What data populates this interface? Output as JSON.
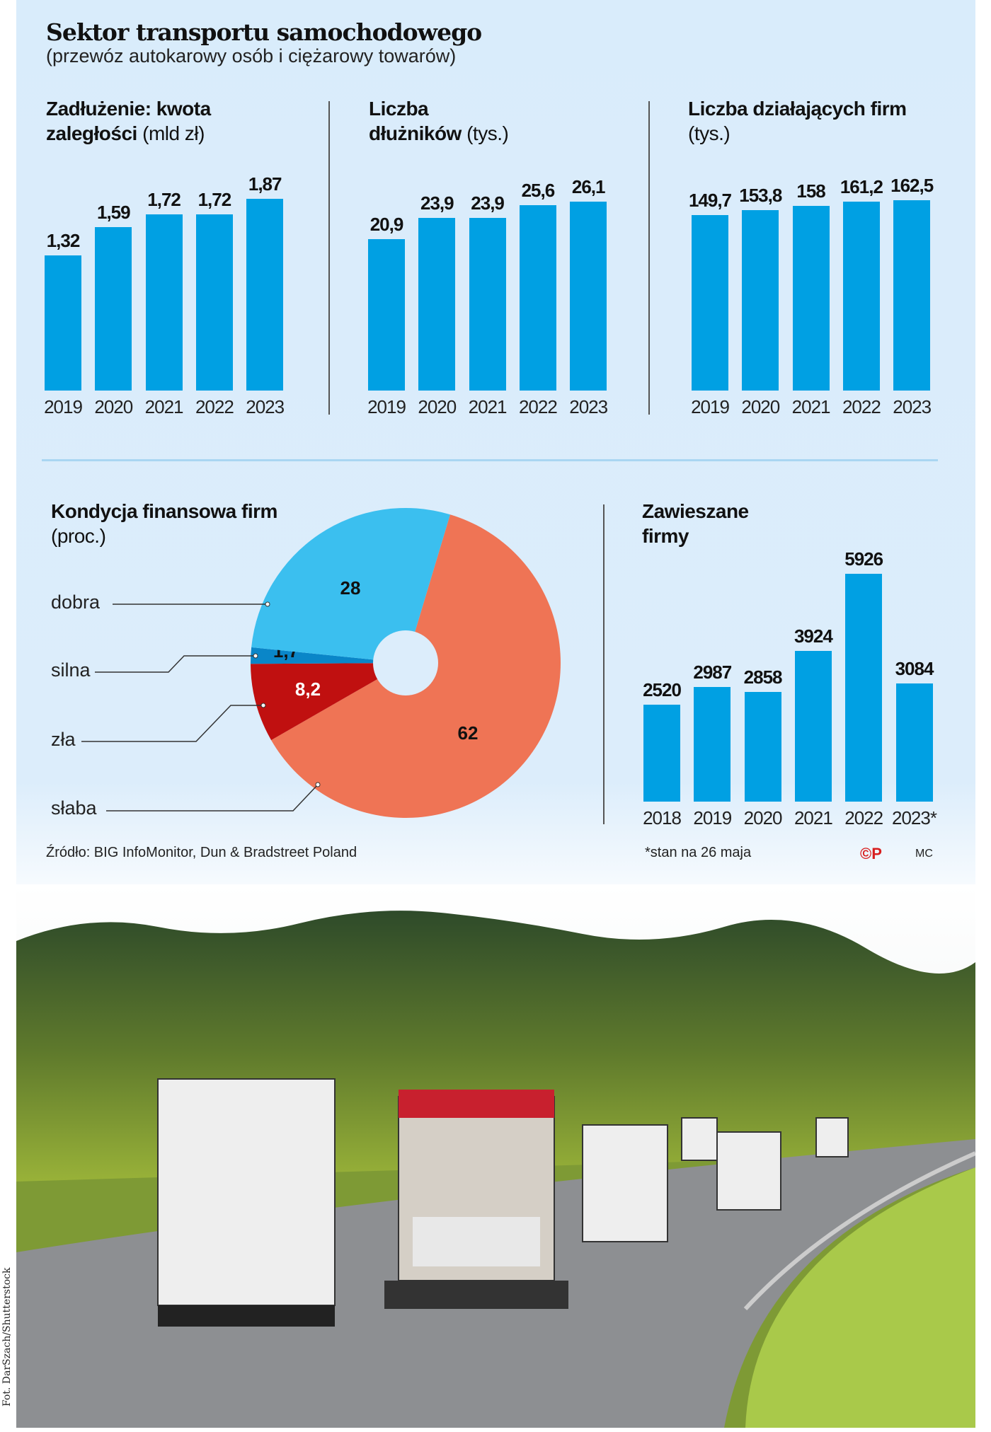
{
  "title": "Sektor transportu samochodowego",
  "subtitle": "(przewóz autokarowy osób i ciężarowy towarów)",
  "colors": {
    "bar": "#00a0e3",
    "background": "#dcedfb",
    "dobra": "#3bbfef",
    "silna": "#0a86c8",
    "zla": "#c01010",
    "slaba": "#ef7455"
  },
  "chart_data": [
    {
      "type": "bar",
      "title_bold": "Zadłużenie: kwota zaległości",
      "title_unit": "(mld zł)",
      "categories": [
        "2019",
        "2020",
        "2021",
        "2022",
        "2023"
      ],
      "values": [
        1.32,
        1.59,
        1.72,
        1.72,
        1.87
      ],
      "labels": [
        "1,32",
        "1,59",
        "1,72",
        "1,72",
        "1,87"
      ]
    },
    {
      "type": "bar",
      "title_bold": "Liczba dłużników",
      "title_unit": "(tys.)",
      "categories": [
        "2019",
        "2020",
        "2021",
        "2022",
        "2023"
      ],
      "values": [
        20.9,
        23.9,
        23.9,
        25.6,
        26.1
      ],
      "labels": [
        "20,9",
        "23,9",
        "23,9",
        "25,6",
        "26,1"
      ]
    },
    {
      "type": "bar",
      "title_bold": "Liczba działających firm",
      "title_unit": "(tys.)",
      "categories": [
        "2019",
        "2020",
        "2021",
        "2022",
        "2023"
      ],
      "values": [
        149.7,
        153.8,
        158,
        161.2,
        162.5
      ],
      "labels": [
        "149,7",
        "153,8",
        "158",
        "161,2",
        "162,5"
      ]
    },
    {
      "type": "pie",
      "title_bold": "Kondycja finansowa firm",
      "title_unit": "(proc.)",
      "slices": [
        {
          "name": "słaba",
          "value": 62,
          "label": "62",
          "color": "#ef7455"
        },
        {
          "name": "zła",
          "value": 8.2,
          "label": "8,2",
          "color": "#c01010"
        },
        {
          "name": "silna",
          "value": 1.7,
          "label": "1,7",
          "color": "#0a86c8"
        },
        {
          "name": "dobra",
          "value": 28,
          "label": "28",
          "color": "#3bbfef"
        }
      ],
      "donut": true
    },
    {
      "type": "bar",
      "title_bold": "Zawieszane firmy",
      "title_unit": "",
      "categories": [
        "2018",
        "2019",
        "2020",
        "2021",
        "2022",
        "2023*"
      ],
      "values": [
        2520,
        2987,
        2858,
        3924,
        5926,
        3084
      ],
      "labels": [
        "2520",
        "2987",
        "2858",
        "3924",
        "5926",
        "3084"
      ]
    }
  ],
  "footer": {
    "source": "Źródło: BIG InfoMonitor, Dun & Bradstreet Poland",
    "note": "*stan na 26 maja",
    "logo": "©P",
    "author": "MC"
  },
  "photo_credit": "Fot. DarSzach/Shutterstock"
}
